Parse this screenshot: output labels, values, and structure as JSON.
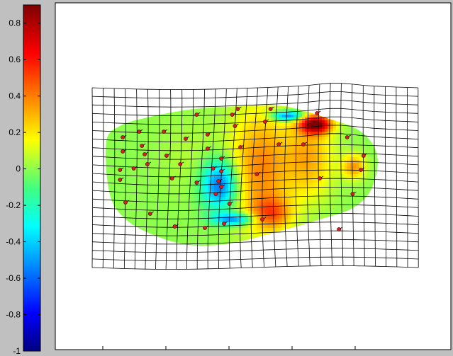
{
  "chart_data": {
    "type": "heatmap",
    "title": "",
    "xlabel": "",
    "ylabel": "",
    "colorbar": {
      "colormap": "jet",
      "range": [
        -1,
        0.9
      ],
      "ticks": [
        {
          "value": 0.8,
          "label": "0.8"
        },
        {
          "value": 0.6,
          "label": "0.6"
        },
        {
          "value": 0.4,
          "label": "0.4"
        },
        {
          "value": 0.2,
          "label": "0.2"
        },
        {
          "value": 0,
          "label": "0"
        },
        {
          "value": -0.2,
          "label": "-0.2"
        },
        {
          "value": -0.4,
          "label": "-0.4"
        },
        {
          "value": -0.6,
          "label": "-0.6"
        },
        {
          "value": -0.8,
          "label": "-0.8"
        },
        {
          "value": -1,
          "label": "-1"
        }
      ]
    },
    "x_axis": {
      "tick_count": 5,
      "tick_labels_visible": false
    },
    "grid_overlay": {
      "type": "deformed-mesh",
      "rows": 22,
      "cols": 31
    },
    "background_value": 0,
    "hotspots": [
      {
        "x": 0.41,
        "y": 0.55,
        "value": -0.62,
        "sx": 0.045,
        "sy": 0.12
      },
      {
        "x": 0.46,
        "y": 0.79,
        "value": -0.55,
        "sx": 0.05,
        "sy": 0.03
      },
      {
        "x": 0.66,
        "y": 0.06,
        "value": -0.65,
        "sx": 0.04,
        "sy": 0.025
      },
      {
        "x": 0.76,
        "y": 0.12,
        "value": 0.85,
        "sx": 0.04,
        "sy": 0.045
      },
      {
        "x": 0.56,
        "y": 0.42,
        "value": 0.38,
        "sx": 0.08,
        "sy": 0.3
      },
      {
        "x": 0.74,
        "y": 0.35,
        "value": 0.3,
        "sx": 0.06,
        "sy": 0.2
      },
      {
        "x": 0.9,
        "y": 0.42,
        "value": 0.35,
        "sx": 0.03,
        "sy": 0.06
      },
      {
        "x": 0.6,
        "y": 0.75,
        "value": 0.35,
        "sx": 0.05,
        "sy": 0.08
      },
      {
        "x": 0.3,
        "y": 0.35,
        "value": 0.05,
        "sx": 0.08,
        "sy": 0.2
      }
    ],
    "markers": [
      [
        0.06,
        0.22
      ],
      [
        0.06,
        0.32
      ],
      [
        0.05,
        0.45
      ],
      [
        0.05,
        0.52
      ],
      [
        0.07,
        0.68
      ],
      [
        0.1,
        0.44
      ],
      [
        0.12,
        0.18
      ],
      [
        0.13,
        0.28
      ],
      [
        0.14,
        0.34
      ],
      [
        0.15,
        0.41
      ],
      [
        0.16,
        0.76
      ],
      [
        0.21,
        0.18
      ],
      [
        0.22,
        0.35
      ],
      [
        0.24,
        0.51
      ],
      [
        0.25,
        0.85
      ],
      [
        0.27,
        0.41
      ],
      [
        0.29,
        0.23
      ],
      [
        0.33,
        0.06
      ],
      [
        0.33,
        0.54
      ],
      [
        0.36,
        0.86
      ],
      [
        0.37,
        0.2
      ],
      [
        0.37,
        0.3
      ],
      [
        0.39,
        0.44
      ],
      [
        0.4,
        0.62
      ],
      [
        0.41,
        0.53
      ],
      [
        0.42,
        0.46
      ],
      [
        0.42,
        0.57
      ],
      [
        0.43,
        0.83
      ],
      [
        0.45,
        0.69
      ],
      [
        0.47,
        0.14
      ],
      [
        0.48,
        0.02
      ],
      [
        0.49,
        0.29
      ],
      [
        0.55,
        0.48
      ],
      [
        0.57,
        0.8
      ],
      [
        0.58,
        0.11
      ],
      [
        0.6,
        0.02
      ],
      [
        0.63,
        0.27
      ],
      [
        0.72,
        0.27
      ],
      [
        0.77,
        0.05
      ],
      [
        0.78,
        0.51
      ],
      [
        0.85,
        0.87
      ],
      [
        0.88,
        0.22
      ],
      [
        0.9,
        0.62
      ],
      [
        0.93,
        0.45
      ],
      [
        0.94,
        0.35
      ],
      [
        0.42,
        0.37
      ],
      [
        0.46,
        0.06
      ]
    ]
  }
}
